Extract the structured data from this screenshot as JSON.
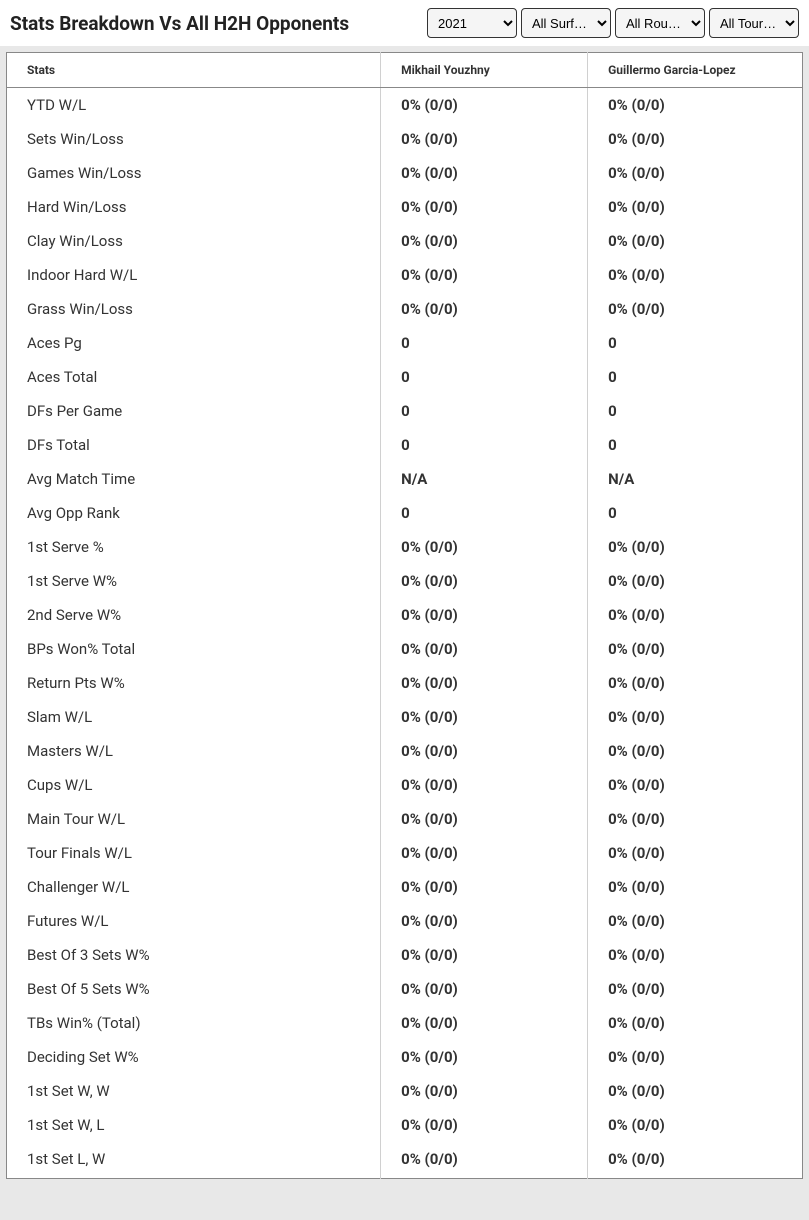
{
  "title": "Stats Breakdown Vs All H2H Opponents",
  "filters": {
    "year": {
      "selected": "2021",
      "options": [
        "2021"
      ]
    },
    "surface": {
      "selected": "All Surf…",
      "options": [
        "All Surf…"
      ]
    },
    "round": {
      "selected": "All Rou…",
      "options": [
        "All Rou…"
      ]
    },
    "tour": {
      "selected": "All Tour…",
      "options": [
        "All Tour…"
      ]
    }
  },
  "columns": {
    "stat": "Stats",
    "player1": "Mikhail Youzhny",
    "player2": "Guillermo Garcia-Lopez"
  },
  "rows": [
    {
      "stat": "YTD W/L",
      "p1": "0% (0/0)",
      "p2": "0% (0/0)"
    },
    {
      "stat": "Sets Win/Loss",
      "p1": "0% (0/0)",
      "p2": "0% (0/0)"
    },
    {
      "stat": "Games Win/Loss",
      "p1": "0% (0/0)",
      "p2": "0% (0/0)"
    },
    {
      "stat": "Hard Win/Loss",
      "p1": "0% (0/0)",
      "p2": "0% (0/0)"
    },
    {
      "stat": "Clay Win/Loss",
      "p1": "0% (0/0)",
      "p2": "0% (0/0)"
    },
    {
      "stat": "Indoor Hard W/L",
      "p1": "0% (0/0)",
      "p2": "0% (0/0)"
    },
    {
      "stat": "Grass Win/Loss",
      "p1": "0% (0/0)",
      "p2": "0% (0/0)"
    },
    {
      "stat": "Aces Pg",
      "p1": "0",
      "p2": "0"
    },
    {
      "stat": "Aces Total",
      "p1": "0",
      "p2": "0"
    },
    {
      "stat": "DFs Per Game",
      "p1": "0",
      "p2": "0"
    },
    {
      "stat": "DFs Total",
      "p1": "0",
      "p2": "0"
    },
    {
      "stat": "Avg Match Time",
      "p1": "N/A",
      "p2": "N/A"
    },
    {
      "stat": "Avg Opp Rank",
      "p1": "0",
      "p2": "0"
    },
    {
      "stat": "1st Serve %",
      "p1": "0% (0/0)",
      "p2": "0% (0/0)"
    },
    {
      "stat": "1st Serve W%",
      "p1": "0% (0/0)",
      "p2": "0% (0/0)"
    },
    {
      "stat": "2nd Serve W%",
      "p1": "0% (0/0)",
      "p2": "0% (0/0)"
    },
    {
      "stat": "BPs Won% Total",
      "p1": "0% (0/0)",
      "p2": "0% (0/0)"
    },
    {
      "stat": "Return Pts W%",
      "p1": "0% (0/0)",
      "p2": "0% (0/0)"
    },
    {
      "stat": "Slam W/L",
      "p1": "0% (0/0)",
      "p2": "0% (0/0)"
    },
    {
      "stat": "Masters W/L",
      "p1": "0% (0/0)",
      "p2": "0% (0/0)"
    },
    {
      "stat": "Cups W/L",
      "p1": "0% (0/0)",
      "p2": "0% (0/0)"
    },
    {
      "stat": "Main Tour W/L",
      "p1": "0% (0/0)",
      "p2": "0% (0/0)"
    },
    {
      "stat": "Tour Finals W/L",
      "p1": "0% (0/0)",
      "p2": "0% (0/0)"
    },
    {
      "stat": "Challenger W/L",
      "p1": "0% (0/0)",
      "p2": "0% (0/0)"
    },
    {
      "stat": "Futures W/L",
      "p1": "0% (0/0)",
      "p2": "0% (0/0)"
    },
    {
      "stat": "Best Of 3 Sets W%",
      "p1": "0% (0/0)",
      "p2": "0% (0/0)"
    },
    {
      "stat": "Best Of 5 Sets W%",
      "p1": "0% (0/0)",
      "p2": "0% (0/0)"
    },
    {
      "stat": "TBs Win% (Total)",
      "p1": "0% (0/0)",
      "p2": "0% (0/0)"
    },
    {
      "stat": "Deciding Set W%",
      "p1": "0% (0/0)",
      "p2": "0% (0/0)"
    },
    {
      "stat": "1st Set W, W",
      "p1": "0% (0/0)",
      "p2": "0% (0/0)"
    },
    {
      "stat": "1st Set W, L",
      "p1": "0% (0/0)",
      "p2": "0% (0/0)"
    },
    {
      "stat": "1st Set L, W",
      "p1": "0% (0/0)",
      "p2": "0% (0/0)"
    }
  ],
  "colors": {
    "background": "#e8e8e8",
    "table_bg": "#ffffff",
    "border": "#888888",
    "divider": "#d0d0d0",
    "text": "#333333",
    "title_text": "#222222"
  }
}
